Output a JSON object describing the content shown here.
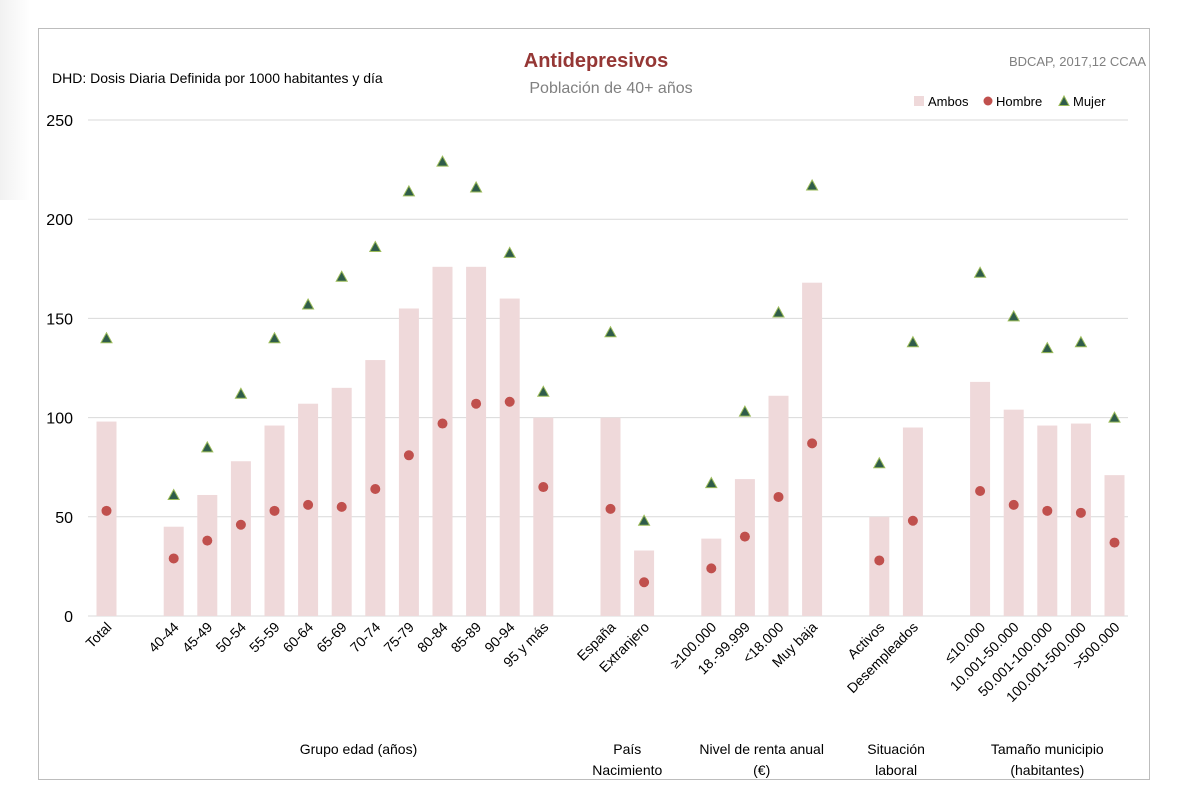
{
  "chart_data": {
    "type": "bar",
    "title": "Antidepresivos",
    "subtitle": "Población de 40+ años",
    "note": "DHD: Dosis Diaria Definida por 1000 habitantes  y día",
    "source": "BDCAP, 2017,12 CCAA",
    "ylim": [
      0,
      250
    ],
    "yticks": [
      0,
      50,
      100,
      150,
      200,
      250
    ],
    "grid": true,
    "legend_position": "top-right",
    "colors": {
      "ambos": "#efd9da",
      "hombre": "#c0504d",
      "mujer": "#2f5c4a",
      "mujer_edge": "#9bbb59",
      "grid": "#d9d9d9"
    },
    "categories": [
      "Total",
      "40-44",
      "45-49",
      "50-54",
      "55-59",
      "60-64",
      "65-69",
      "70-74",
      "75-79",
      "80-84",
      "85-89",
      "90-94",
      "95 y más",
      "España",
      "Extranjero",
      "≥100.000",
      "18.-99.999",
      "<18.000",
      "Muy baja",
      "Activos",
      "Desempleados",
      "≤10.000",
      "10.001-50.000",
      "50.001-100.000",
      "100.001-500.000",
      ">500.000"
    ],
    "series": [
      {
        "name": "Ambos",
        "marker": "bar",
        "values": [
          98,
          45,
          61,
          78,
          96,
          107,
          115,
          129,
          155,
          176,
          176,
          160,
          100,
          100,
          33,
          39,
          69,
          111,
          168,
          50,
          95,
          118,
          104,
          96,
          97,
          71
        ]
      },
      {
        "name": "Hombre",
        "marker": "circle",
        "values": [
          53,
          29,
          38,
          46,
          53,
          56,
          55,
          64,
          81,
          97,
          107,
          108,
          65,
          54,
          17,
          24,
          40,
          60,
          87,
          28,
          48,
          63,
          56,
          53,
          52,
          37
        ]
      },
      {
        "name": "Mujer",
        "marker": "triangle",
        "values": [
          140,
          61,
          85,
          112,
          140,
          157,
          171,
          186,
          214,
          229,
          216,
          183,
          113,
          143,
          48,
          67,
          103,
          153,
          217,
          77,
          138,
          173,
          151,
          135,
          138,
          100
        ]
      }
    ],
    "groups": [
      {
        "label_lines": [
          "Grupo edad (años)"
        ],
        "from": 1,
        "to": 12
      },
      {
        "label_lines": [
          "País",
          "Nacimiento"
        ],
        "from": 13,
        "to": 14
      },
      {
        "label_lines": [
          "Nivel de renta anual",
          "(€)"
        ],
        "from": 15,
        "to": 18
      },
      {
        "label_lines": [
          "Situación",
          "laboral"
        ],
        "from": 19,
        "to": 20
      },
      {
        "label_lines": [
          "Tamaño municipio",
          "(habitantes)"
        ],
        "from": 21,
        "to": 25
      }
    ]
  }
}
